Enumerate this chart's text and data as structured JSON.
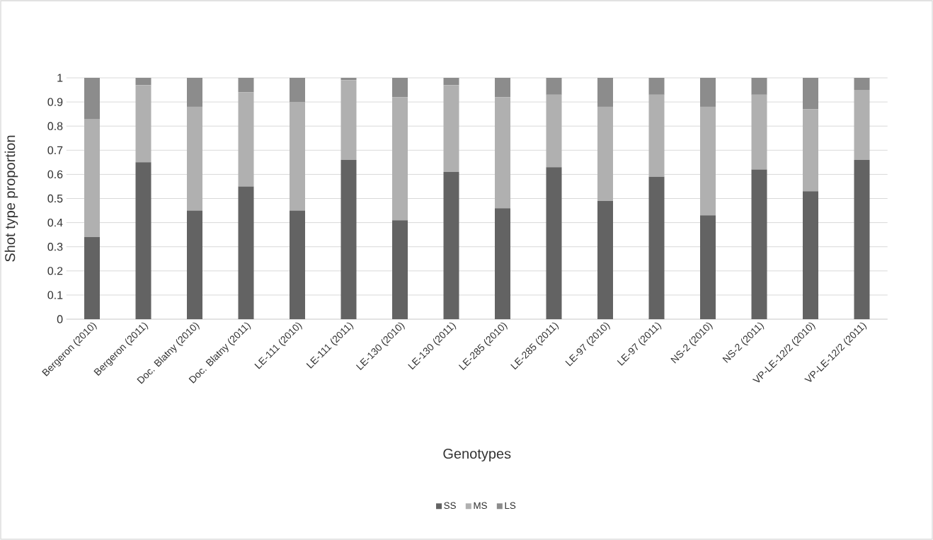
{
  "chart_data": {
    "type": "bar",
    "stacked": true,
    "xlabel": "Genotypes",
    "ylabel": "Shot type proportion",
    "categories": [
      "Bergeron (2010)",
      "Bergeron (2011)",
      "Doc. Blatny (2010)",
      "Doc. Blatny (2011)",
      "LE-111 (2010)",
      "LE-111 (2011)",
      "LE-130 (2010)",
      "LE-130 (2011)",
      "LE-285 (2010)",
      "LE-285 (2011)",
      "LE-97 (2010)",
      "LE-97 (2011)",
      "NS-2 (2010)",
      "NS-2 (2011)",
      "VP-LE-12/2 (2010)",
      "VP-LE-12/2 (2011)"
    ],
    "series": [
      {
        "name": "SS",
        "color": "#636363",
        "values": [
          0.34,
          0.65,
          0.45,
          0.55,
          0.45,
          0.66,
          0.41,
          0.61,
          0.46,
          0.63,
          0.49,
          0.59,
          0.43,
          0.62,
          0.53,
          0.66
        ]
      },
      {
        "name": "MS",
        "color": "#b0b0b0",
        "values": [
          0.49,
          0.32,
          0.43,
          0.39,
          0.45,
          0.33,
          0.51,
          0.36,
          0.46,
          0.3,
          0.39,
          0.34,
          0.45,
          0.31,
          0.34,
          0.29
        ]
      },
      {
        "name": "LS",
        "color": "#8c8c8c",
        "values": [
          0.17,
          0.03,
          0.12,
          0.06,
          0.1,
          0.01,
          0.08,
          0.03,
          0.08,
          0.07,
          0.12,
          0.07,
          0.12,
          0.07,
          0.13,
          0.05
        ]
      }
    ],
    "ylim": [
      0,
      1
    ],
    "yticks": [
      0,
      0.1,
      0.2,
      0.3,
      0.4,
      0.5,
      0.6,
      0.7,
      0.8,
      0.9,
      1
    ],
    "grid": "y",
    "legend": "bottom"
  }
}
